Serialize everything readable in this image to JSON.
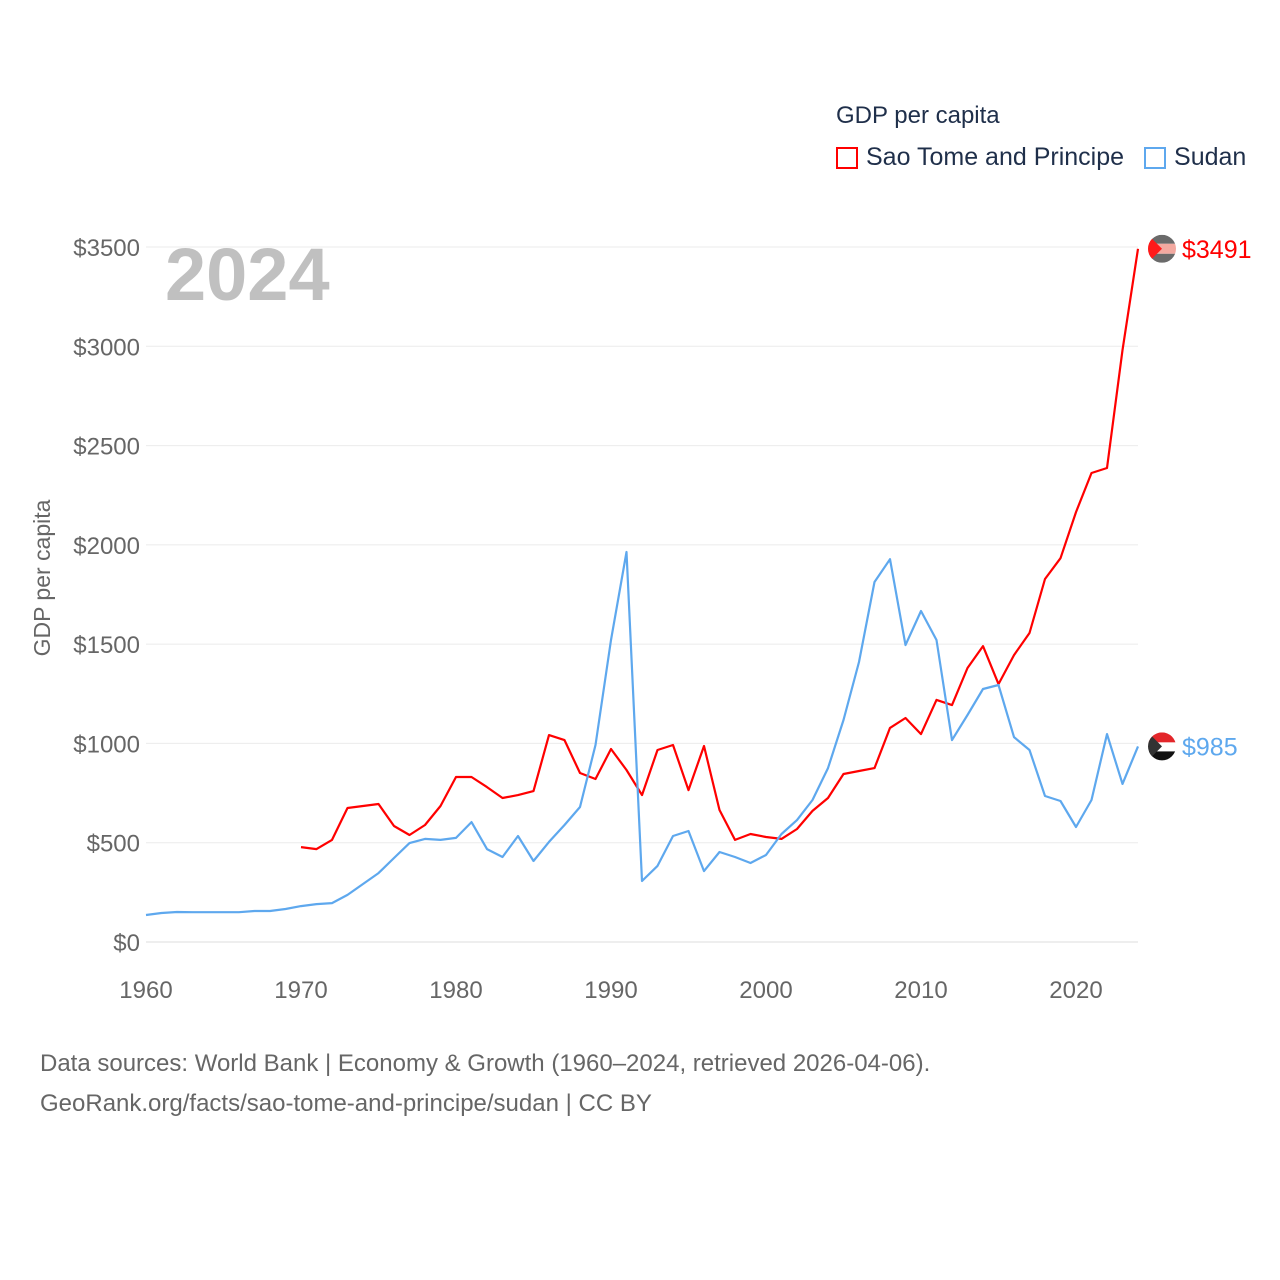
{
  "chart_data": {
    "type": "line",
    "title": "GDP per capita",
    "xlabel": "",
    "ylabel": "GDP per capita",
    "xlim": [
      1960,
      2024
    ],
    "ylim": [
      0,
      3500
    ],
    "x_ticks": [
      "1960",
      "1970",
      "1980",
      "1990",
      "2000",
      "2010",
      "2020"
    ],
    "y_ticks": [
      "$0",
      "$500",
      "$1000",
      "$1500",
      "$2000",
      "$2500",
      "$3000",
      "$3500"
    ],
    "grid": true,
    "legend_placement": "top-right",
    "highlight_year": "2024",
    "series": [
      {
        "name": "Sao Tome and Principe",
        "color": "#ff0000",
        "start_year": 1970,
        "end_label": "$3491",
        "values": [
          478,
          468,
          514,
          675,
          685,
          695,
          584,
          539,
          589,
          685,
          831,
          831,
          780,
          725,
          740,
          760,
          1042,
          1017,
          851,
          821,
          972,
          866,
          740,
          967,
          992,
          765,
          987,
          665,
          514,
          544,
          529,
          519,
          569,
          660,
          725,
          846,
          861,
          876,
          1078,
          1128,
          1047,
          1219,
          1193,
          1380,
          1490,
          1299,
          1445,
          1556,
          1828,
          1933,
          2165,
          2362,
          2387,
          2981,
          3491
        ]
      },
      {
        "name": "Sudan",
        "color": "#5ea8ee",
        "start_year": 1960,
        "end_label": "$985",
        "values": [
          136,
          146,
          151,
          150,
          150,
          150,
          150,
          156,
          156,
          166,
          181,
          191,
          196,
          237,
          292,
          347,
          423,
          498,
          519,
          514,
          524,
          604,
          468,
          428,
          534,
          408,
          504,
          589,
          680,
          992,
          1521,
          1964,
          307,
          383,
          534,
          559,
          357,
          453,
          428,
          398,
          438,
          544,
          614,
          715,
          876,
          1118,
          1410,
          1813,
          1928,
          1495,
          1667,
          1521,
          1017,
          1143,
          1274,
          1294,
          1032,
          967,
          735,
          710,
          579,
          715,
          1047,
          796,
          985
        ]
      }
    ]
  },
  "footer": {
    "line1": "Data sources: World Bank | Economy & Growth (1960–2024, retrieved 2026-04-06).",
    "line2": "GeoRank.org/facts/sao-tome-and-principe/sudan | CC BY"
  }
}
